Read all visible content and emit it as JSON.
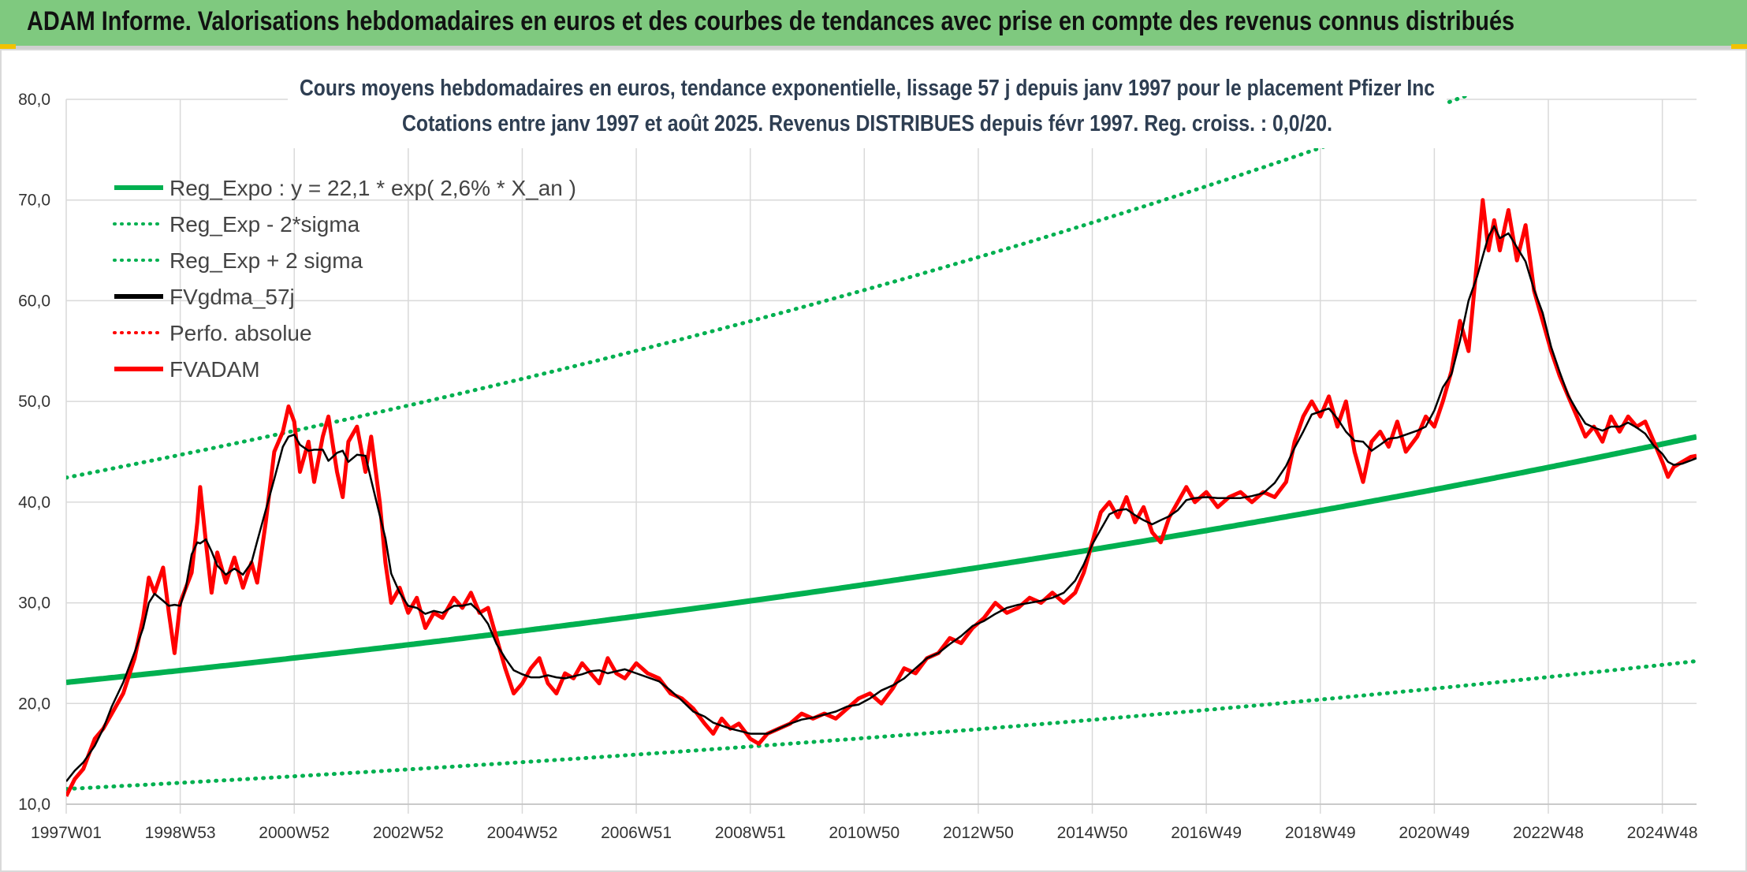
{
  "header": {
    "title": "ADAM Informe. Valorisations hebdomadaires en euros et des courbes de tendances avec prise en compte des revenus connus distribués"
  },
  "chart_data": {
    "type": "line",
    "title_line1": "Cours moyens hebdomadaires en euros, tendance exponentielle, lissage 57 j depuis janv 1997 pour le placement Pfizer Inc",
    "title_line2": "Cotations entre janv 1997 et août 2025. Revenus DISTRIBUES depuis févr 1997. Reg. croiss. : 0,0/20.",
    "ylim": [
      10,
      80
    ],
    "yticks": [
      "10,0",
      "20,0",
      "30,0",
      "40,0",
      "50,0",
      "60,0",
      "70,0",
      "80,0"
    ],
    "xlim": [
      1997.0,
      2025.6
    ],
    "xtick_labels": [
      "1997W01",
      "1998W53",
      "2000W52",
      "2002W52",
      "2004W52",
      "2006W51",
      "2008W51",
      "2010W50",
      "2012W50",
      "2014W50",
      "2016W49",
      "2018W49",
      "2020W49",
      "2022W48",
      "2024W48"
    ],
    "xtick_positions": [
      1997.0,
      1999.0,
      2001.0,
      2003.0,
      2005.0,
      2007.0,
      2009.0,
      2011.0,
      2013.0,
      2015.0,
      2017.0,
      2019.0,
      2021.0,
      2023.0,
      2025.0
    ],
    "grid": true,
    "legend_position": "top-left",
    "regression": {
      "a": 22.1,
      "rate": 0.026,
      "sigma_factor": 1.92
    },
    "series": [
      {
        "name": "Reg_Expo : y = 22,1 * exp( 2,6% *  X_an )",
        "color": "#00b050",
        "style": "solid"
      },
      {
        "name": "Reg_Exp - 2*sigma",
        "color": "#00b050",
        "style": "dotted"
      },
      {
        "name": "Reg_Exp + 2 sigma",
        "color": "#00b050",
        "style": "dotted"
      },
      {
        "name": "FVgdma_57j",
        "color": "#000000",
        "style": "solid"
      },
      {
        "name": "Perfo. absolue",
        "color": "#ff0000",
        "style": "dotted"
      },
      {
        "name": "FVADAM",
        "color": "#ff0000",
        "style": "solid"
      }
    ],
    "fvadam_points": [
      [
        1997.0,
        10.8
      ],
      [
        1997.15,
        12.5
      ],
      [
        1997.3,
        13.5
      ],
      [
        1997.5,
        16.5
      ],
      [
        1997.65,
        17.5
      ],
      [
        1997.8,
        19.0
      ],
      [
        1998.0,
        21.0
      ],
      [
        1998.2,
        24.5
      ],
      [
        1998.35,
        28.5
      ],
      [
        1998.45,
        32.5
      ],
      [
        1998.55,
        31.0
      ],
      [
        1998.7,
        33.5
      ],
      [
        1998.8,
        29.0
      ],
      [
        1998.9,
        25.0
      ],
      [
        1999.0,
        30.0
      ],
      [
        1999.1,
        31.5
      ],
      [
        1999.2,
        33.0
      ],
      [
        1999.3,
        38.0
      ],
      [
        1999.35,
        41.5
      ],
      [
        1999.45,
        36.0
      ],
      [
        1999.55,
        31.0
      ],
      [
        1999.65,
        35.0
      ],
      [
        1999.8,
        32.0
      ],
      [
        1999.95,
        34.5
      ],
      [
        2000.1,
        31.5
      ],
      [
        2000.25,
        34.0
      ],
      [
        2000.35,
        32.0
      ],
      [
        2000.5,
        38.0
      ],
      [
        2000.65,
        45.0
      ],
      [
        2000.8,
        47.0
      ],
      [
        2000.9,
        49.5
      ],
      [
        2001.0,
        48.0
      ],
      [
        2001.1,
        43.0
      ],
      [
        2001.25,
        46.0
      ],
      [
        2001.35,
        42.0
      ],
      [
        2001.5,
        46.5
      ],
      [
        2001.6,
        48.5
      ],
      [
        2001.75,
        43.0
      ],
      [
        2001.85,
        40.5
      ],
      [
        2001.95,
        46.0
      ],
      [
        2002.1,
        47.5
      ],
      [
        2002.25,
        43.0
      ],
      [
        2002.35,
        46.5
      ],
      [
        2002.5,
        40.0
      ],
      [
        2002.6,
        34.0
      ],
      [
        2002.7,
        30.0
      ],
      [
        2002.85,
        31.5
      ],
      [
        2003.0,
        29.0
      ],
      [
        2003.15,
        30.5
      ],
      [
        2003.3,
        27.5
      ],
      [
        2003.45,
        29.0
      ],
      [
        2003.6,
        28.5
      ],
      [
        2003.8,
        30.5
      ],
      [
        2003.95,
        29.5
      ],
      [
        2004.1,
        31.0
      ],
      [
        2004.25,
        29.0
      ],
      [
        2004.4,
        29.5
      ],
      [
        2004.55,
        26.5
      ],
      [
        2004.7,
        23.5
      ],
      [
        2004.85,
        21.0
      ],
      [
        2005.0,
        22.0
      ],
      [
        2005.15,
        23.5
      ],
      [
        2005.3,
        24.5
      ],
      [
        2005.45,
        22.0
      ],
      [
        2005.6,
        21.0
      ],
      [
        2005.75,
        23.0
      ],
      [
        2005.9,
        22.5
      ],
      [
        2006.05,
        24.0
      ],
      [
        2006.2,
        23.0
      ],
      [
        2006.35,
        22.0
      ],
      [
        2006.5,
        24.5
      ],
      [
        2006.65,
        23.0
      ],
      [
        2006.8,
        22.5
      ],
      [
        2007.0,
        24.0
      ],
      [
        2007.2,
        23.0
      ],
      [
        2007.4,
        22.5
      ],
      [
        2007.6,
        21.0
      ],
      [
        2007.8,
        20.5
      ],
      [
        2008.0,
        19.5
      ],
      [
        2008.2,
        18.0
      ],
      [
        2008.35,
        17.0
      ],
      [
        2008.5,
        18.5
      ],
      [
        2008.65,
        17.5
      ],
      [
        2008.8,
        18.0
      ],
      [
        2009.0,
        16.5
      ],
      [
        2009.15,
        16.0
      ],
      [
        2009.3,
        17.0
      ],
      [
        2009.5,
        17.5
      ],
      [
        2009.7,
        18.0
      ],
      [
        2009.9,
        19.0
      ],
      [
        2010.1,
        18.5
      ],
      [
        2010.3,
        19.0
      ],
      [
        2010.5,
        18.5
      ],
      [
        2010.7,
        19.5
      ],
      [
        2010.9,
        20.5
      ],
      [
        2011.1,
        21.0
      ],
      [
        2011.3,
        20.0
      ],
      [
        2011.5,
        21.5
      ],
      [
        2011.7,
        23.5
      ],
      [
        2011.9,
        23.0
      ],
      [
        2012.1,
        24.5
      ],
      [
        2012.3,
        25.0
      ],
      [
        2012.5,
        26.5
      ],
      [
        2012.7,
        26.0
      ],
      [
        2012.9,
        27.5
      ],
      [
        2013.1,
        28.5
      ],
      [
        2013.3,
        30.0
      ],
      [
        2013.5,
        29.0
      ],
      [
        2013.7,
        29.5
      ],
      [
        2013.9,
        30.5
      ],
      [
        2014.1,
        30.0
      ],
      [
        2014.3,
        31.0
      ],
      [
        2014.5,
        30.0
      ],
      [
        2014.7,
        31.0
      ],
      [
        2014.85,
        33.0
      ],
      [
        2015.0,
        36.0
      ],
      [
        2015.15,
        39.0
      ],
      [
        2015.3,
        40.0
      ],
      [
        2015.45,
        38.5
      ],
      [
        2015.6,
        40.5
      ],
      [
        2015.75,
        38.0
      ],
      [
        2015.9,
        39.5
      ],
      [
        2016.05,
        37.0
      ],
      [
        2016.2,
        36.0
      ],
      [
        2016.35,
        38.5
      ],
      [
        2016.5,
        40.0
      ],
      [
        2016.65,
        41.5
      ],
      [
        2016.8,
        40.0
      ],
      [
        2017.0,
        41.0
      ],
      [
        2017.2,
        39.5
      ],
      [
        2017.4,
        40.5
      ],
      [
        2017.6,
        41.0
      ],
      [
        2017.8,
        40.0
      ],
      [
        2018.0,
        41.0
      ],
      [
        2018.2,
        40.5
      ],
      [
        2018.4,
        42.0
      ],
      [
        2018.55,
        46.0
      ],
      [
        2018.7,
        48.5
      ],
      [
        2018.85,
        50.0
      ],
      [
        2019.0,
        48.5
      ],
      [
        2019.15,
        50.5
      ],
      [
        2019.3,
        47.5
      ],
      [
        2019.45,
        50.0
      ],
      [
        2019.6,
        45.0
      ],
      [
        2019.75,
        42.0
      ],
      [
        2019.9,
        46.0
      ],
      [
        2020.05,
        47.0
      ],
      [
        2020.2,
        45.5
      ],
      [
        2020.35,
        48.0
      ],
      [
        2020.5,
        45.0
      ],
      [
        2020.7,
        46.5
      ],
      [
        2020.85,
        48.5
      ],
      [
        2021.0,
        47.5
      ],
      [
        2021.15,
        50.0
      ],
      [
        2021.3,
        53.0
      ],
      [
        2021.45,
        58.0
      ],
      [
        2021.6,
        55.0
      ],
      [
        2021.75,
        64.0
      ],
      [
        2021.85,
        70.0
      ],
      [
        2021.95,
        65.0
      ],
      [
        2022.05,
        68.0
      ],
      [
        2022.15,
        65.0
      ],
      [
        2022.3,
        69.0
      ],
      [
        2022.45,
        64.0
      ],
      [
        2022.6,
        67.5
      ],
      [
        2022.75,
        61.0
      ],
      [
        2022.9,
        58.0
      ],
      [
        2023.05,
        55.0
      ],
      [
        2023.2,
        52.5
      ],
      [
        2023.35,
        50.5
      ],
      [
        2023.5,
        48.5
      ],
      [
        2023.65,
        46.5
      ],
      [
        2023.8,
        47.5
      ],
      [
        2023.95,
        46.0
      ],
      [
        2024.1,
        48.5
      ],
      [
        2024.25,
        47.0
      ],
      [
        2024.4,
        48.5
      ],
      [
        2024.55,
        47.5
      ],
      [
        2024.7,
        48.0
      ],
      [
        2024.85,
        46.0
      ],
      [
        2025.0,
        44.0
      ],
      [
        2025.1,
        42.5
      ],
      [
        2025.2,
        43.5
      ],
      [
        2025.35,
        44.0
      ],
      [
        2025.5,
        44.5
      ],
      [
        2025.6,
        44.6
      ]
    ]
  }
}
